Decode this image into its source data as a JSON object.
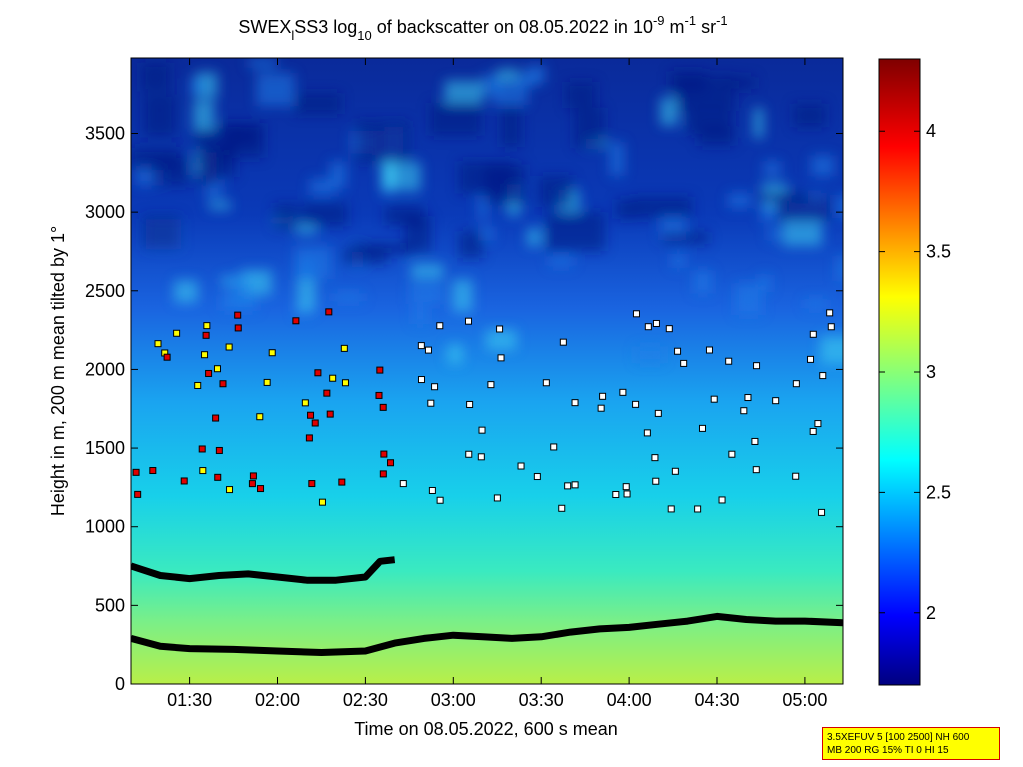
{
  "chart_data": {
    "type": "heatmap",
    "title": {
      "prefix": "SWEX",
      "sub1": "l",
      "mid1": "SS3 log",
      "sub2": "10",
      "mid2": " of backscatter on 08.05.2022 in 10",
      "sup1": "-9",
      "mid3": " m",
      "sup2": "-1",
      "mid4": " sr",
      "sup3": "-1"
    },
    "xlabel": "Time on 08.05.2022, 600 s mean",
    "ylabel": "Height in m, 200 m mean tilted by 1°",
    "x_range": [
      "01:10",
      "05:13"
    ],
    "y_range": [
      0,
      3980
    ],
    "x_ticks": [
      "01:30",
      "02:00",
      "02:30",
      "03:00",
      "03:30",
      "04:00",
      "04:30",
      "05:00"
    ],
    "y_ticks": [
      0,
      500,
      1000,
      1500,
      2000,
      2500,
      3000,
      3500
    ],
    "colorbar": {
      "range": [
        1.7,
        4.3
      ],
      "ticks": [
        "2",
        "2.5",
        "3",
        "3.5",
        "4"
      ],
      "colormap": "jet"
    },
    "lower_layer": {
      "name": "boundary-layer-trace",
      "points": [
        [
          "01:10",
          290
        ],
        [
          "01:20",
          240
        ],
        [
          "01:30",
          225
        ],
        [
          "01:45",
          220
        ],
        [
          "02:00",
          210
        ],
        [
          "02:15",
          200
        ],
        [
          "02:30",
          210
        ],
        [
          "02:40",
          260
        ],
        [
          "02:50",
          290
        ],
        [
          "03:00",
          310
        ],
        [
          "03:10",
          300
        ],
        [
          "03:20",
          290
        ],
        [
          "03:30",
          300
        ],
        [
          "03:40",
          330
        ],
        [
          "03:50",
          350
        ],
        [
          "04:00",
          360
        ],
        [
          "04:10",
          380
        ],
        [
          "04:20",
          400
        ],
        [
          "04:30",
          430
        ],
        [
          "04:40",
          410
        ],
        [
          "04:50",
          400
        ],
        [
          "05:00",
          400
        ],
        [
          "05:13",
          390
        ]
      ]
    },
    "upper_layer": {
      "name": "residual-layer-trace",
      "points": [
        [
          "01:10",
          750
        ],
        [
          "01:20",
          690
        ],
        [
          "01:30",
          670
        ],
        [
          "01:40",
          690
        ],
        [
          "01:50",
          700
        ],
        [
          "02:00",
          680
        ],
        [
          "02:10",
          660
        ],
        [
          "02:20",
          660
        ],
        [
          "02:30",
          680
        ],
        [
          "02:35",
          780
        ],
        [
          "02:40",
          790
        ]
      ]
    }
  },
  "info_box": {
    "line1": "3.5XEFUV 5 [100 2500] NH 600",
    "line2": "MB 200 RG 15% TI 0 HI 15"
  },
  "colors": {
    "marker_red": "#e00000",
    "marker_yellow": "#ffff00",
    "marker_white": "#ffffff",
    "trace": "#000000",
    "info_bg": "#ffff00",
    "info_border": "#d40000"
  }
}
